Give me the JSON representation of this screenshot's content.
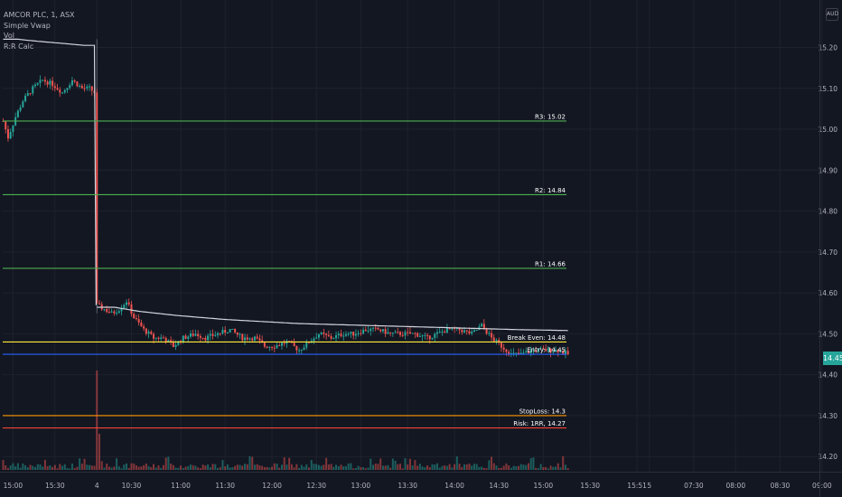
{
  "legend": {
    "symbol": "AMCOR PLC, 1, ASX",
    "indicators": [
      "Simple Vwap",
      "Vol",
      "R:R Calc"
    ]
  },
  "currency": "AUD",
  "last_price_label": "14.45",
  "colors": {
    "background": "#131722",
    "grid": "#1e222d",
    "up": "#26a69a",
    "down": "#ef5350",
    "vwap": "#d1d4dc",
    "target": "#4caf50",
    "break_even": "#ffeb3b",
    "entry": "#2962ff",
    "stop_loss": "#ff9800",
    "risk": "#f44336"
  },
  "chart_data": {
    "type": "candlestick",
    "ylim": [
      14.185,
      15.285
    ],
    "y_ticks": [
      14.2,
      14.3,
      14.4,
      14.5,
      14.6,
      14.7,
      14.8,
      14.9,
      15.0,
      15.1,
      15.2
    ],
    "y_tick_labels": [
      "14.20",
      "14.30",
      "14.40",
      "14.50",
      "14.60",
      "14.70",
      "14.80",
      "14.90",
      "15.00",
      "15.10",
      "15.20"
    ],
    "x_ticks": [
      {
        "label": "15:00",
        "bar": 4
      },
      {
        "label": "15:30",
        "bar": 21
      },
      {
        "label": "4",
        "bar": 38
      },
      {
        "label": "10:30",
        "bar": 52
      },
      {
        "label": "11:00",
        "bar": 72
      },
      {
        "label": "11:30",
        "bar": 90
      },
      {
        "label": "12:00",
        "bar": 109
      },
      {
        "label": "12:30",
        "bar": 127
      },
      {
        "label": "13:00",
        "bar": 145
      },
      {
        "label": "13:30",
        "bar": 164
      },
      {
        "label": "14:00",
        "bar": 183
      },
      {
        "label": "14:30",
        "bar": 201
      },
      {
        "label": "15:00",
        "bar": 219
      },
      {
        "label": "15:30",
        "bar": 238
      },
      {
        "label": "15:51",
        "bar": 257
      },
      {
        "label": "5",
        "bar": 262
      },
      {
        "label": "07:30",
        "bar": 280
      },
      {
        "label": "08:00",
        "bar": 297
      },
      {
        "label": "08:30",
        "bar": 315
      },
      {
        "label": "09:00",
        "bar": 332
      }
    ],
    "session_break_bar": 38,
    "num_bars": 230,
    "anchors": [
      [
        0,
        15.02
      ],
      [
        2,
        14.98
      ],
      [
        5,
        15.03
      ],
      [
        8,
        15.07
      ],
      [
        12,
        15.1
      ],
      [
        16,
        15.12
      ],
      [
        20,
        15.11
      ],
      [
        24,
        15.09
      ],
      [
        28,
        15.12
      ],
      [
        32,
        15.1
      ],
      [
        35,
        15.1
      ],
      [
        37,
        15.09
      ],
      [
        38,
        14.57
      ],
      [
        41,
        14.56
      ],
      [
        44,
        14.55
      ],
      [
        47,
        14.56
      ],
      [
        50,
        14.58
      ],
      [
        53,
        14.54
      ],
      [
        57,
        14.51
      ],
      [
        61,
        14.49
      ],
      [
        65,
        14.49
      ],
      [
        69,
        14.47
      ],
      [
        73,
        14.49
      ],
      [
        78,
        14.5
      ],
      [
        82,
        14.49
      ],
      [
        87,
        14.5
      ],
      [
        92,
        14.51
      ],
      [
        97,
        14.49
      ],
      [
        102,
        14.49
      ],
      [
        106,
        14.47
      ],
      [
        110,
        14.47
      ],
      [
        115,
        14.48
      ],
      [
        120,
        14.46
      ],
      [
        124,
        14.48
      ],
      [
        128,
        14.5
      ],
      [
        133,
        14.49
      ],
      [
        138,
        14.5
      ],
      [
        142,
        14.5
      ],
      [
        147,
        14.51
      ],
      [
        152,
        14.51
      ],
      [
        157,
        14.5
      ],
      [
        162,
        14.5
      ],
      [
        167,
        14.5
      ],
      [
        172,
        14.49
      ],
      [
        176,
        14.5
      ],
      [
        180,
        14.51
      ],
      [
        185,
        14.51
      ],
      [
        190,
        14.5
      ],
      [
        194,
        14.52
      ],
      [
        198,
        14.49
      ],
      [
        202,
        14.47
      ],
      [
        206,
        14.45
      ],
      [
        210,
        14.45
      ],
      [
        215,
        14.46
      ],
      [
        220,
        14.46
      ],
      [
        225,
        14.46
      ],
      [
        229,
        14.45
      ]
    ],
    "vwap": [
      [
        0,
        15.22
      ],
      [
        6,
        15.22
      ],
      [
        14,
        15.215
      ],
      [
        24,
        15.21
      ],
      [
        33,
        15.205
      ],
      [
        37,
        15.205
      ],
      [
        38,
        14.565
      ],
      [
        45,
        14.565
      ],
      [
        55,
        14.555
      ],
      [
        70,
        14.545
      ],
      [
        90,
        14.535
      ],
      [
        120,
        14.525
      ],
      [
        150,
        14.52
      ],
      [
        180,
        14.515
      ],
      [
        210,
        14.51
      ],
      [
        229,
        14.508
      ]
    ],
    "levels": [
      {
        "name": "R3",
        "label": "R3: 15.02",
        "price": 15.02,
        "kind": "target"
      },
      {
        "name": "R2",
        "label": "R2: 14.84",
        "price": 14.84,
        "kind": "target"
      },
      {
        "name": "R1",
        "label": "R1: 14.66",
        "price": 14.66,
        "kind": "target"
      },
      {
        "name": "Break Even",
        "label": "Break Even: 14.48",
        "price": 14.48,
        "kind": "break_even"
      },
      {
        "name": "Entry",
        "label": "Entry: 14.45",
        "price": 14.45,
        "kind": "entry"
      },
      {
        "name": "StopLoss",
        "label": "StopLoss: 14.3",
        "price": 14.3,
        "kind": "stop_loss"
      },
      {
        "name": "Risk",
        "label": "Risk: 1RR, 14.27",
        "price": 14.27,
        "kind": "risk"
      }
    ]
  }
}
